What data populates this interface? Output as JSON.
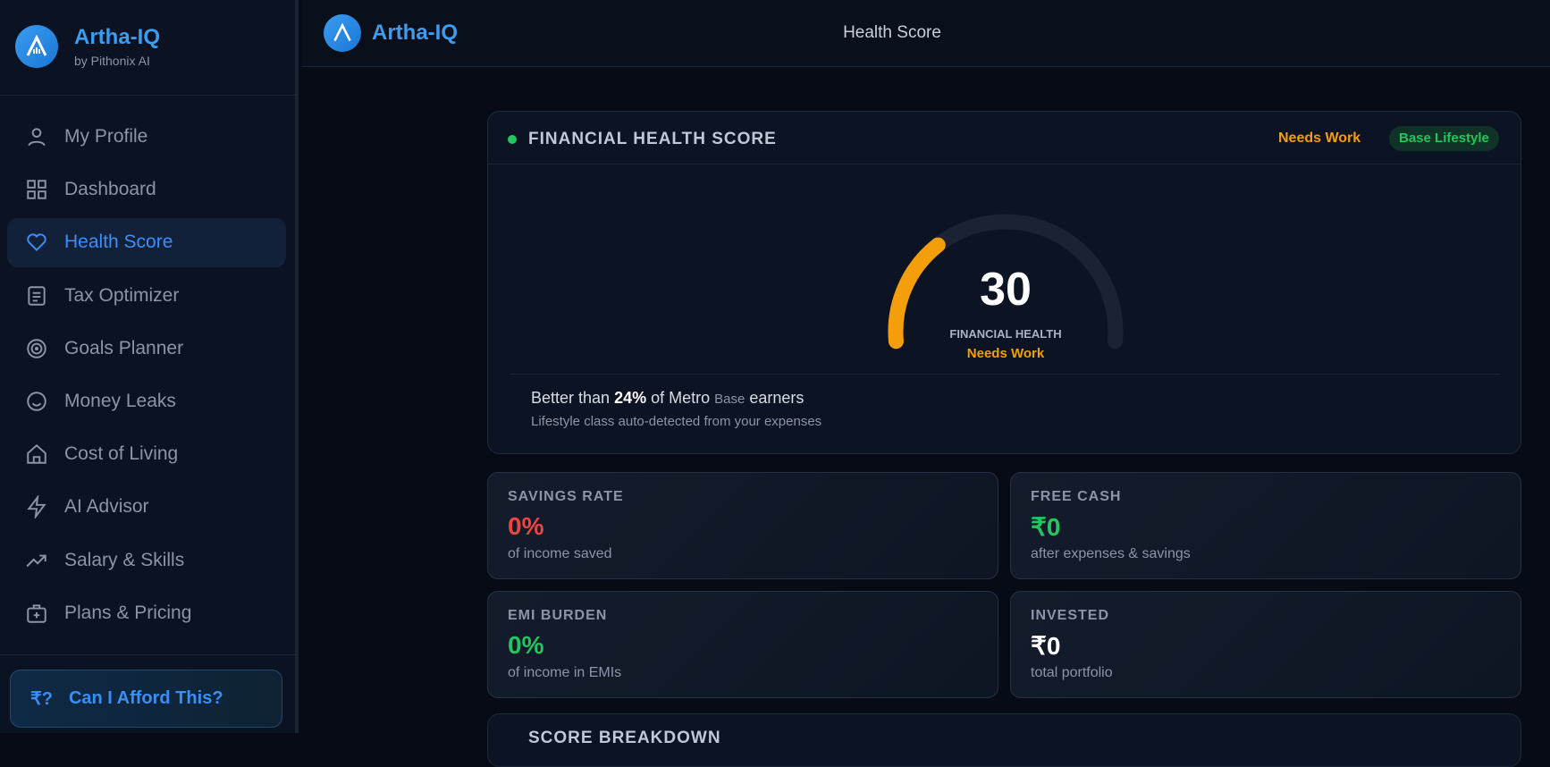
{
  "sidebar": {
    "brand": {
      "name": "Artha-IQ",
      "tagline": "by Pithonix AI"
    },
    "nav": [
      "My Profile",
      "Dashboard",
      "Health Score",
      "Tax Optimizer",
      "Goals Planner",
      "Money Leaks",
      "Cost of Living",
      "AI Advisor",
      "Salary & Skills",
      "Plans & Pricing"
    ],
    "active": "Health Score",
    "cta": {
      "icon": "₹?",
      "label": "Can I Afford This?"
    }
  },
  "header": {
    "brand": "Artha-IQ",
    "title": "Health Score"
  },
  "health_card": {
    "title": "FINANCIAL HEALTH SCORE",
    "status": "Needs Work",
    "badge": "Base Lifestyle",
    "score": 30,
    "score_label": "FINANCIAL HEALTH",
    "score_status": "Needs Work",
    "comparison": {
      "prefix": "Better than",
      "percent": "24%",
      "middle": "of Metro",
      "class": "Base",
      "suffix": "earners"
    },
    "note": "Lifestyle class auto-detected from your expenses"
  },
  "stats": [
    {
      "label": "SAVINGS RATE",
      "value": "0%",
      "caption": "of income saved",
      "color": "#ef4444"
    },
    {
      "label": "FREE CASH",
      "value": "₹0",
      "caption": "after expenses & savings",
      "color": "#22c55e"
    },
    {
      "label": "EMI BURDEN",
      "value": "0%",
      "caption": "of income in EMIs",
      "color": "#22c55e"
    },
    {
      "label": "INVESTED",
      "value": "₹0",
      "caption": "total portfolio",
      "color": "#ffffff"
    }
  ],
  "next_card": {
    "title": "SCORE BREAKDOWN"
  }
}
